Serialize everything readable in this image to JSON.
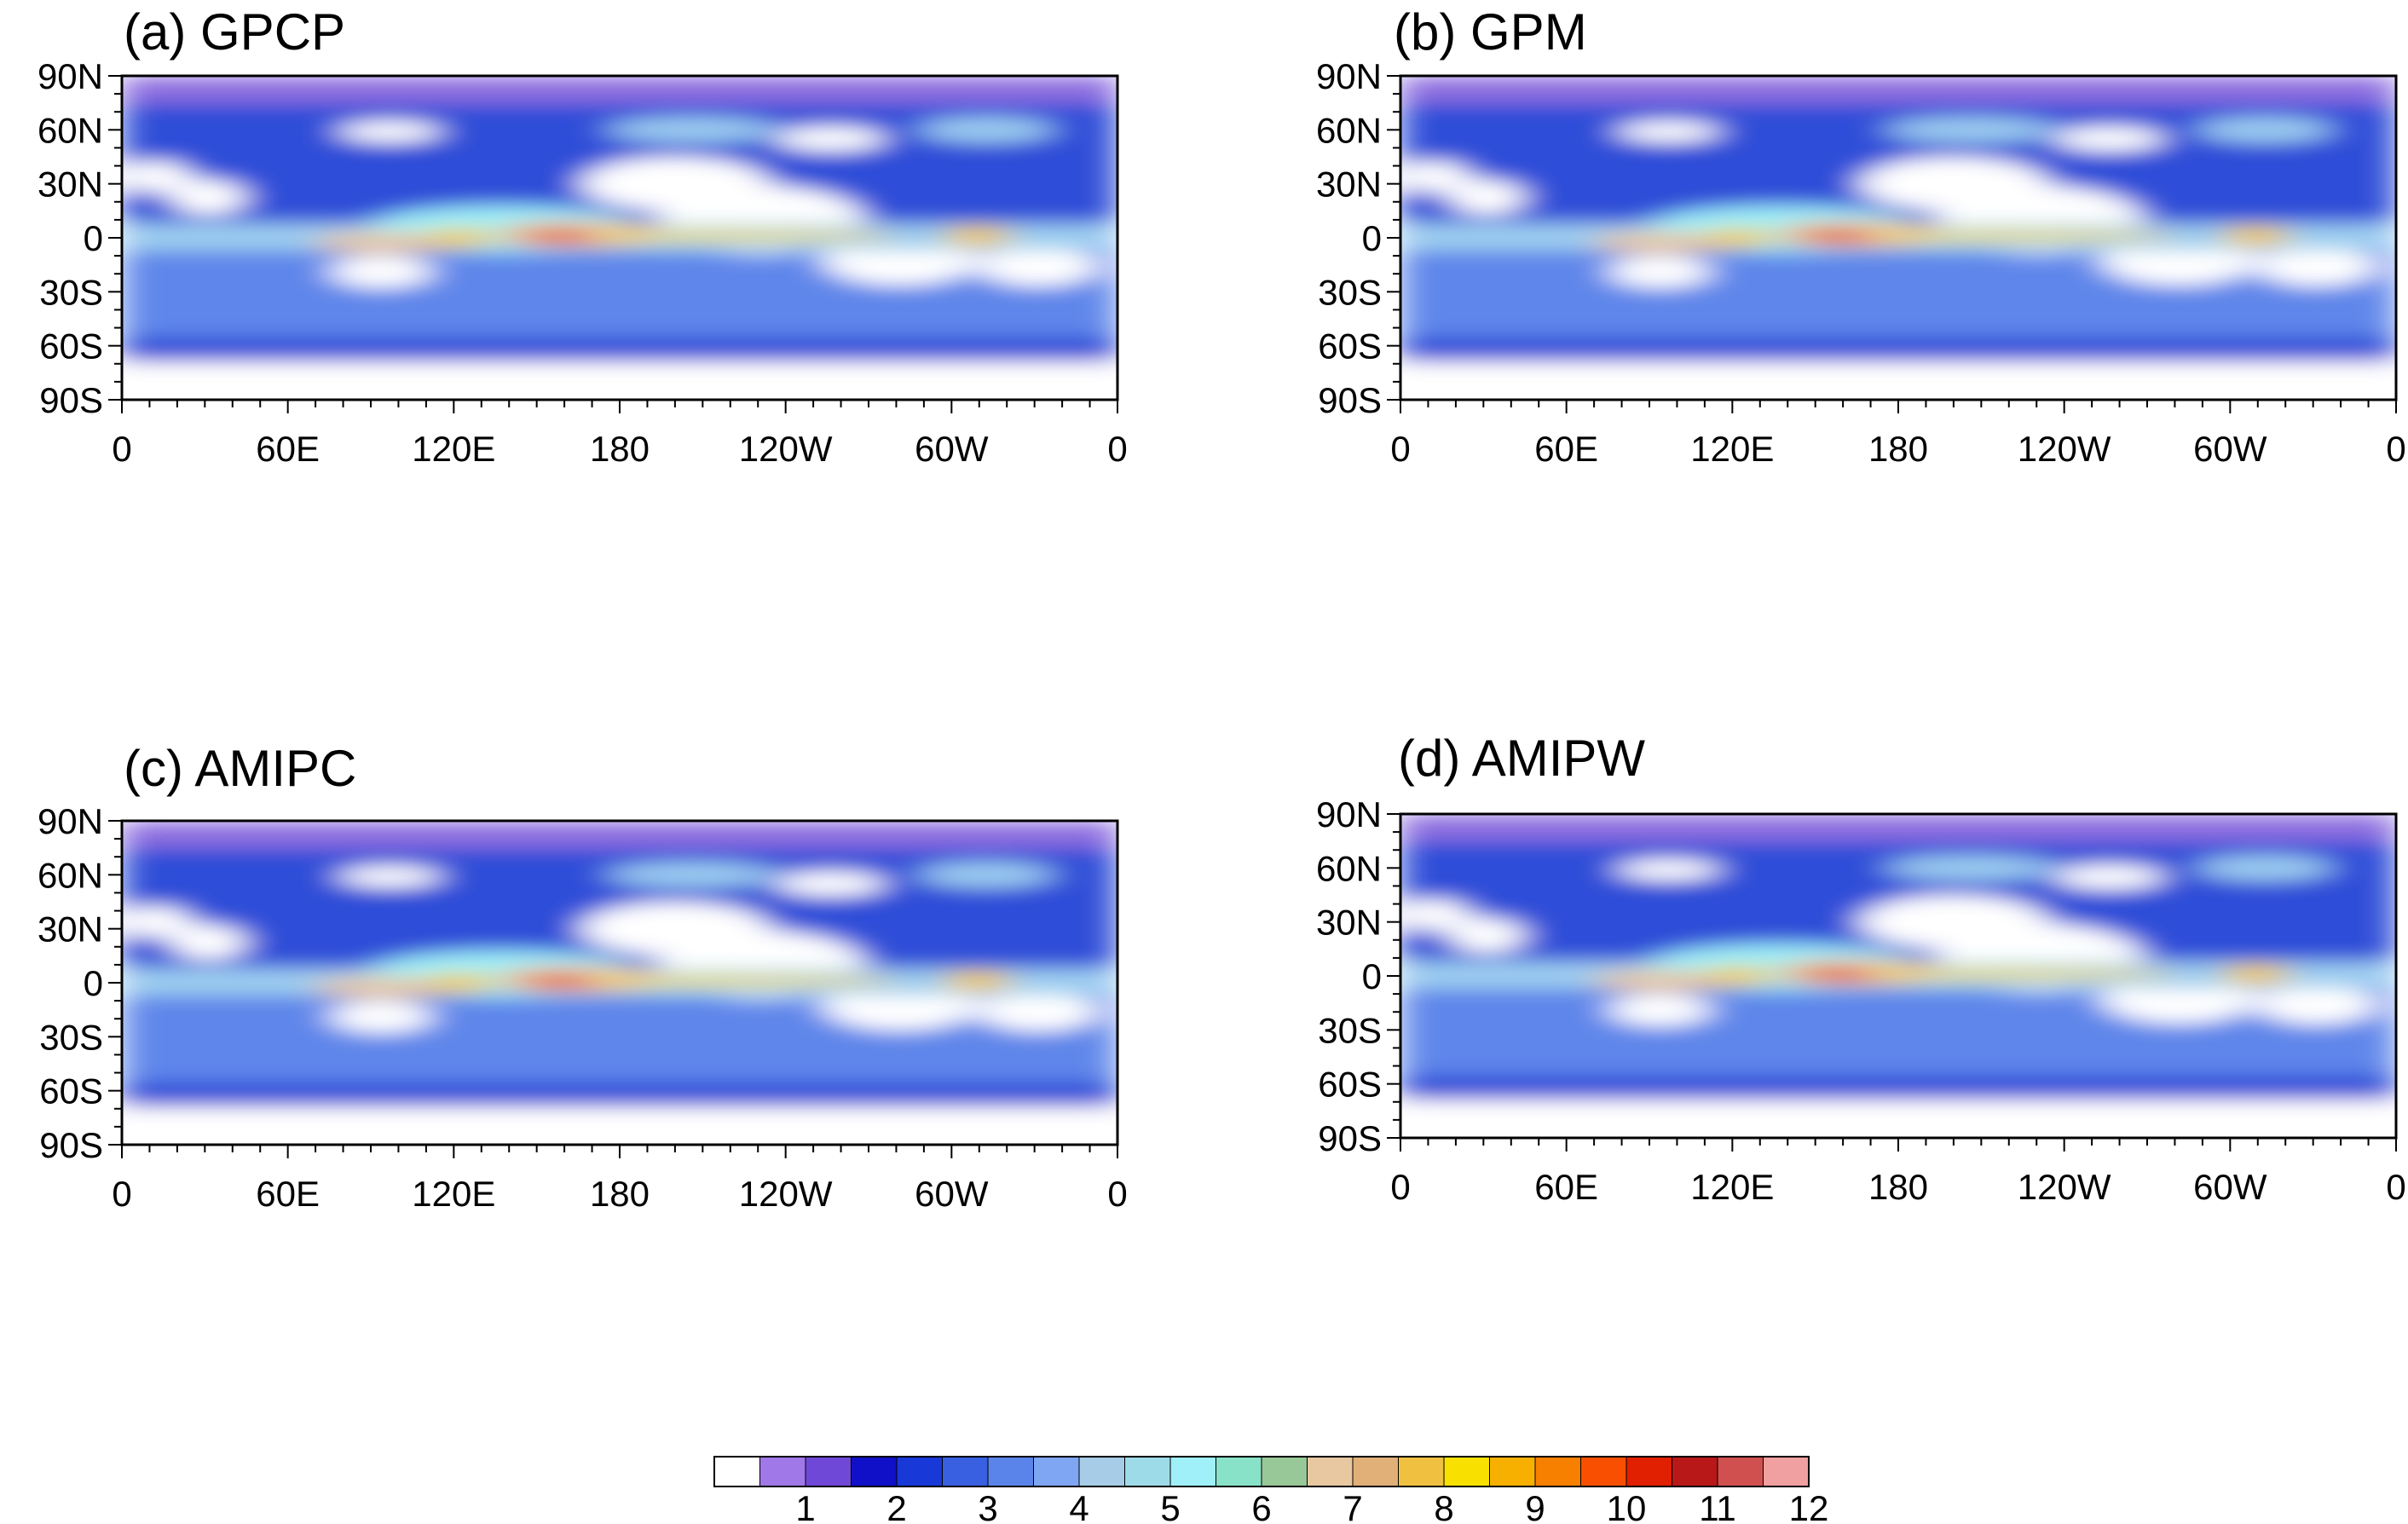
{
  "panels": [
    {
      "id": "a",
      "title": "(a)  GPCP"
    },
    {
      "id": "b",
      "title": "(b)  GPM"
    },
    {
      "id": "c",
      "title": "(c)  AMIPC"
    },
    {
      "id": "d",
      "title": "(d)  AMIPW"
    }
  ],
  "axes": {
    "lat_labels": [
      "90N",
      "60N",
      "30N",
      "0",
      "30S",
      "60S",
      "90S"
    ],
    "lon_labels": [
      "0",
      "60E",
      "120E",
      "180",
      "120W",
      "60W",
      "0"
    ]
  },
  "colorbar": {
    "labels": [
      "1",
      "2",
      "3",
      "4",
      "5",
      "6",
      "7",
      "8",
      "9",
      "10",
      "11",
      "12"
    ],
    "colors": [
      "#ffffff",
      "#a078e8",
      "#7048d8",
      "#1010c8",
      "#1838d8",
      "#3860e0",
      "#5a84ea",
      "#7ea6f2",
      "#a6cce8",
      "#9edbe8",
      "#9ff0f8",
      "#88e2c8",
      "#98c898",
      "#e8c8a0",
      "#e0b078",
      "#f0c040",
      "#f8e000",
      "#f8b000",
      "#f88000",
      "#f85000",
      "#e02000",
      "#b81818",
      "#d05050",
      "#f0a0a0"
    ]
  },
  "map_legend": {
    "white": "below 1",
    "purple": "1-2",
    "blue": "2-4",
    "cyan": "4-7",
    "tan_yellow": "7-9",
    "orange_red": "9-12"
  }
}
